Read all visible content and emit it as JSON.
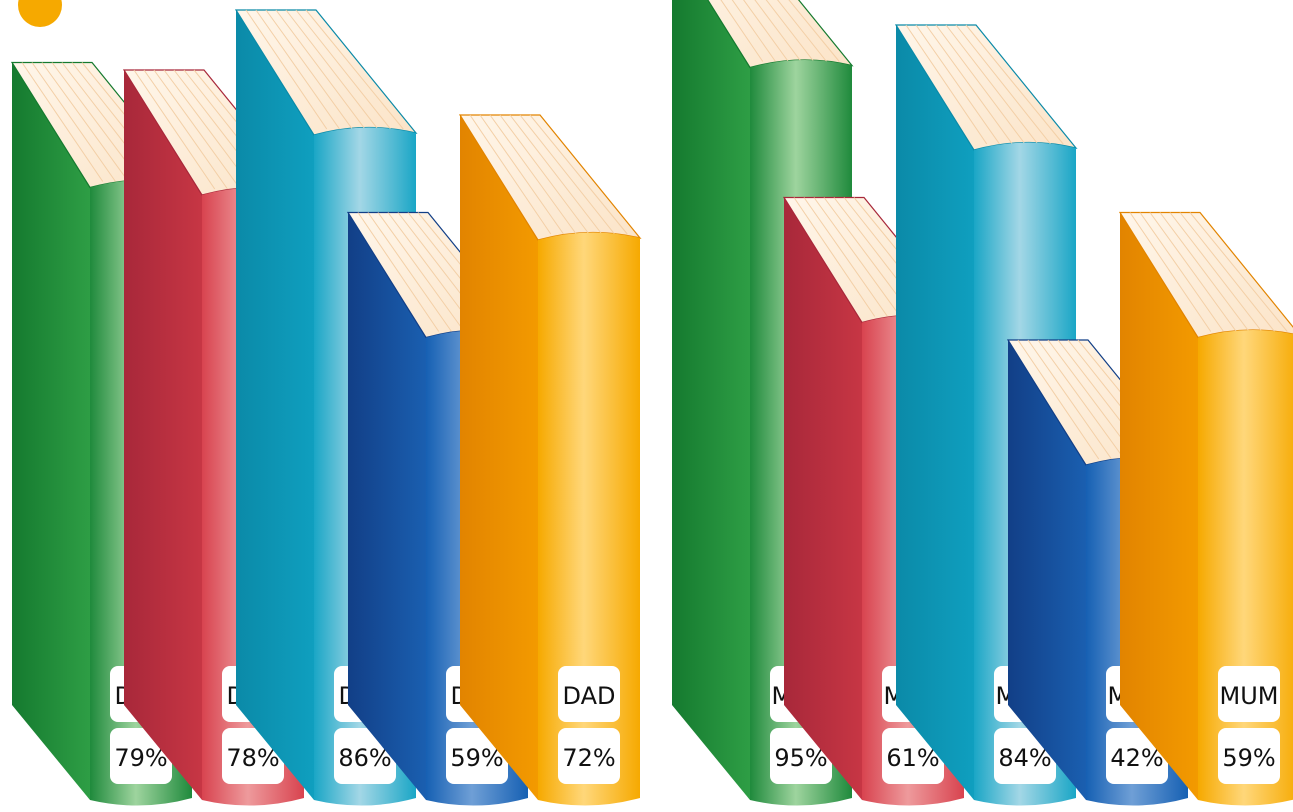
{
  "chart_data": {
    "type": "bar",
    "groups": [
      {
        "name": "DAD",
        "books": [
          {
            "label": "DAD",
            "value": 79,
            "value_label": "79%",
            "color": "green"
          },
          {
            "label": "DAD",
            "value": 78,
            "value_label": "78%",
            "color": "red"
          },
          {
            "label": "DAD",
            "value": 86,
            "value_label": "86%",
            "color": "cyan"
          },
          {
            "label": "DAD",
            "value": 59,
            "value_label": "59%",
            "color": "blue"
          },
          {
            "label": "DAD",
            "value": 72,
            "value_label": "72%",
            "color": "orange"
          }
        ]
      },
      {
        "name": "MUM",
        "books": [
          {
            "label": "MUM",
            "value": 95,
            "value_label": "95%",
            "color": "green"
          },
          {
            "label": "MUM",
            "value": 61,
            "value_label": "61%",
            "color": "red"
          },
          {
            "label": "MUM",
            "value": 84,
            "value_label": "84%",
            "color": "cyan"
          },
          {
            "label": "MUM",
            "value": 42,
            "value_label": "42%",
            "color": "blue"
          },
          {
            "label": "MUM",
            "value": 59,
            "value_label": "59%",
            "color": "orange"
          }
        ]
      }
    ]
  },
  "palette": {
    "green": {
      "spine_dark": "#1f8a3c",
      "spine_mid": "#9ed49e",
      "back": "#2e9e45",
      "edge": "#157a2f"
    },
    "red": {
      "spine_dark": "#d8434f",
      "spine_mid": "#ee9a9c",
      "back": "#c73644",
      "edge": "#a8283a"
    },
    "cyan": {
      "spine_dark": "#1aa6c6",
      "spine_mid": "#a3d7e6",
      "back": "#0f9fbf",
      "edge": "#0b8aa8"
    },
    "blue": {
      "spine_dark": "#1660b3",
      "spine_mid": "#6f9fd6",
      "back": "#1a5fb0",
      "edge": "#123f87"
    },
    "orange": {
      "spine_dark": "#f6a900",
      "spine_mid": "#ffd77a",
      "back": "#f39a00",
      "edge": "#e28400"
    },
    "pages": "#fbe4c8",
    "page_line": "#f3cfa6"
  }
}
